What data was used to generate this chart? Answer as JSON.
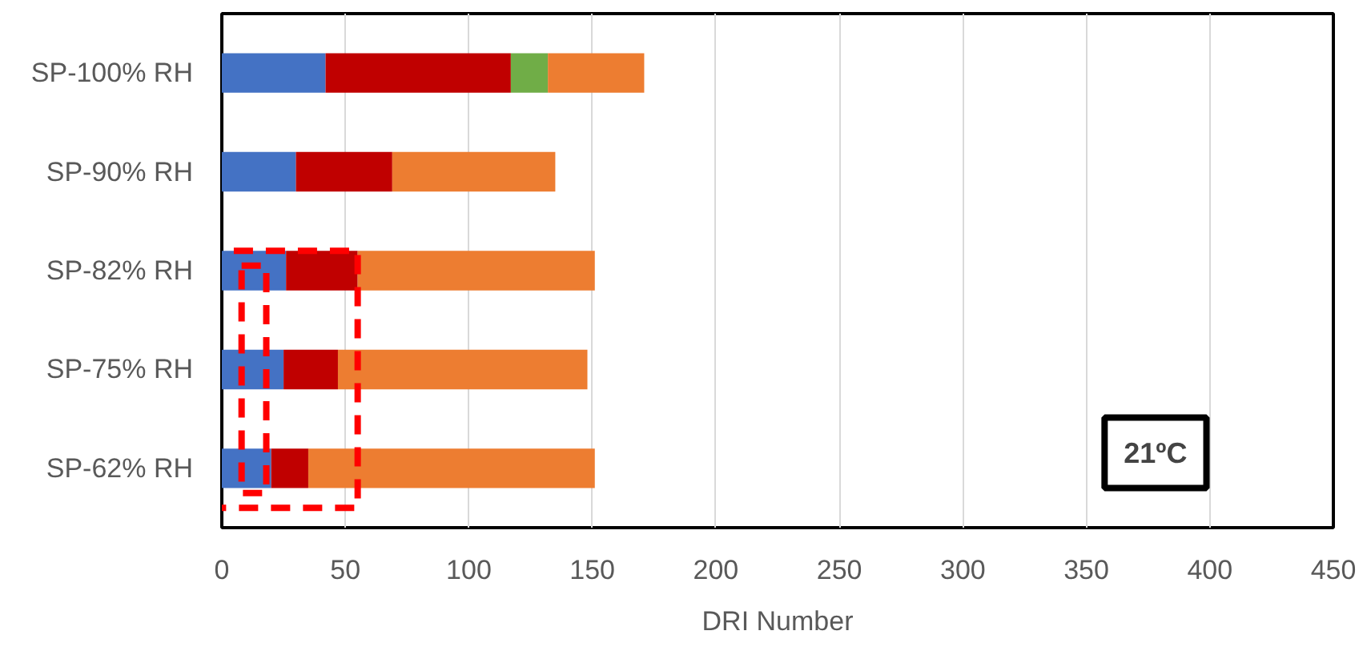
{
  "chart_data": {
    "type": "bar",
    "orientation": "horizontal",
    "stacked": true,
    "xlabel": "DRI Number",
    "categories": [
      "SP-100% RH",
      "SP-90% RH",
      "SP-82% RH",
      "SP-75% RH",
      "SP-62% RH"
    ],
    "series": [
      {
        "color": "#4472c4",
        "values": [
          42,
          30,
          26,
          25,
          20
        ]
      },
      {
        "color": "#c00000",
        "values": [
          75,
          39,
          29,
          22,
          15
        ]
      },
      {
        "color": "#70ad47",
        "values": [
          15,
          null,
          null,
          null,
          null
        ]
      },
      {
        "color": "#ed7d31",
        "values": [
          39,
          66,
          96,
          101,
          116
        ]
      }
    ],
    "xlim": [
      0,
      450
    ],
    "xticks": [
      0,
      50,
      100,
      150,
      200,
      250,
      300,
      350,
      400,
      450
    ],
    "grid": "x",
    "annotations": [
      "21ºC"
    ]
  }
}
